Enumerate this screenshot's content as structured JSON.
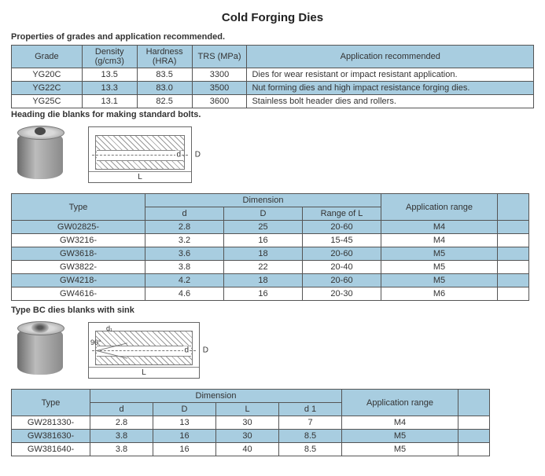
{
  "title": "Cold Forging Dies",
  "section1": {
    "label": "Properties of grades and application recommended.",
    "headers": {
      "grade": "Grade",
      "density": "Density (g/cm3)",
      "hardness": "Hardness (HRA)",
      "trs": "TRS (MPa)",
      "app": "Application recommended"
    },
    "rows": [
      {
        "grade": "YG20C",
        "density": "13.5",
        "hardness": "83.5",
        "trs": "3300",
        "app": "Dies for wear resistant or impact resistant application."
      },
      {
        "grade": "YG22C",
        "density": "13.3",
        "hardness": "83.0",
        "trs": "3500",
        "app": "Nut forming dies and high impact resistance forging dies."
      },
      {
        "grade": "YG25C",
        "density": "13.1",
        "hardness": "82.5",
        "trs": "3600",
        "app": "Stainless bolt header dies and rollers."
      }
    ],
    "colw": {
      "grade": 90,
      "density": 70,
      "hardness": 70,
      "trs": 70,
      "app": 366
    }
  },
  "section2": {
    "label": "Heading die blanks for making standard bolts.",
    "headers": {
      "type": "Type",
      "dim": "Dimension",
      "d": "d",
      "D": "D",
      "range": "Range of L",
      "app": "Application range"
    },
    "rows": [
      {
        "type": "GW02825-",
        "d": "2.8",
        "D": "25",
        "range": "20-60",
        "app": "M4"
      },
      {
        "type": "GW3216-",
        "d": "3.2",
        "D": "16",
        "range": "15-45",
        "app": "M4"
      },
      {
        "type": "GW3618-",
        "d": "3.6",
        "D": "18",
        "range": "20-60",
        "app": "M5"
      },
      {
        "type": "GW3822-",
        "d": "3.8",
        "D": "22",
        "range": "20-40",
        "app": "M5"
      },
      {
        "type": "GW4218-",
        "d": "4.2",
        "D": "18",
        "range": "20-60",
        "app": "M5"
      },
      {
        "type": "GW4616-",
        "d": "4.6",
        "D": "16",
        "range": "20-30",
        "app": "M6"
      }
    ],
    "schem_w": 130,
    "labels": {
      "L": "L",
      "D": "D",
      "d": "d"
    }
  },
  "section3": {
    "label": "Type BC dies blanks with sink",
    "headers": {
      "type": "Type",
      "dim": "Dimension",
      "d": "d",
      "D": "D",
      "L": "L",
      "d1": "d 1",
      "app": "Application range"
    },
    "rows": [
      {
        "type": "GW281330-",
        "d": "2.8",
        "D": "13",
        "L": "30",
        "d1": "7",
        "app": "M4"
      },
      {
        "type": "GW381630-",
        "d": "3.8",
        "D": "16",
        "L": "30",
        "d1": "8.5",
        "app": "M5"
      },
      {
        "type": "GW381640-",
        "d": "3.8",
        "D": "16",
        "L": "40",
        "d1": "8.5",
        "app": "M5"
      }
    ],
    "schem_w": 140,
    "labels": {
      "L": "L",
      "D": "D",
      "d": "d",
      "d1": "d₁",
      "ang": "90°"
    }
  },
  "colors": {
    "header_bg": "#a8cde0",
    "border": "#555555"
  }
}
